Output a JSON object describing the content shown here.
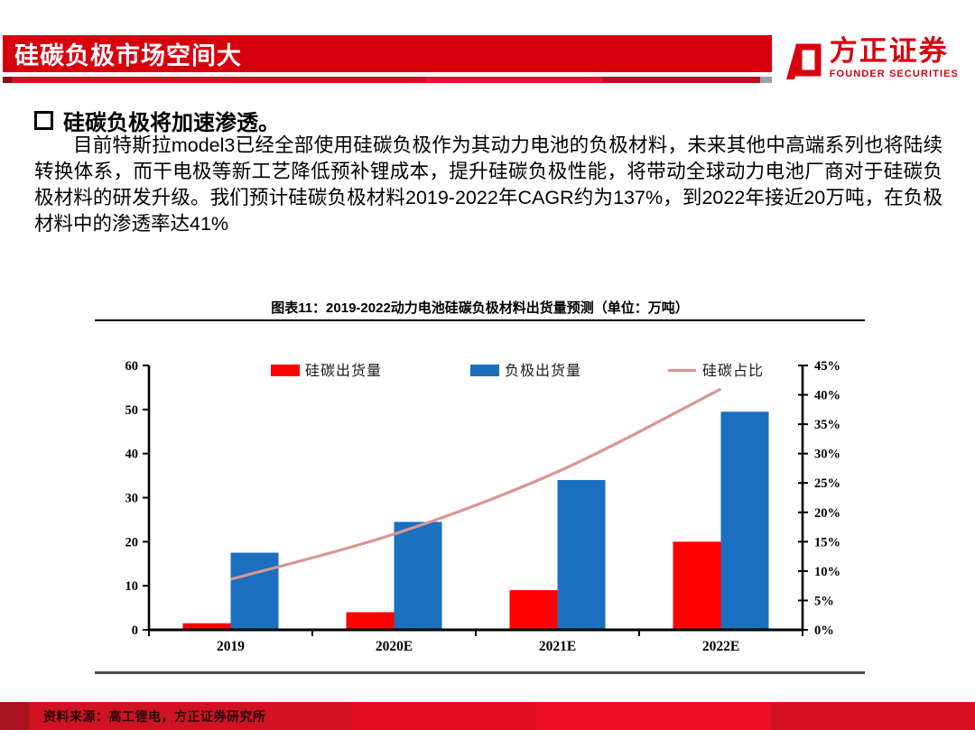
{
  "header": {
    "title": "硅碳负极市场空间大",
    "logo_cn": "方正证券",
    "logo_en": "FOUNDER SECURITIES",
    "bar_color": "#D7000F"
  },
  "content": {
    "heading": "硅碳负极将加速渗透。",
    "paragraph": "目前特斯拉model3已经全部使用硅碳负极作为其动力电池的负极材料，未来其他中高端系列也将陆续转换体系，而干电极等新工艺降低预补锂成本，提升硅碳负极性能，将带动全球动力电池厂商对于硅碳负极材料的研发升级。我们预计硅碳负极材料2019-2022年CAGR约为137%，到2022年接近20万吨，在负极材料中的渗透率达41%"
  },
  "figure": {
    "title": "图表11：2019-2022动力电池硅碳负极材料出货量预测（单位：万吨）"
  },
  "chart_data": {
    "type": "bar",
    "title": "2019-2022动力电池硅碳负极材料出货量预测",
    "unit": "万吨",
    "categories": [
      "2019",
      "2020E",
      "2021E",
      "2022E"
    ],
    "series": [
      {
        "name": "硅碳出货量",
        "type": "bar",
        "axis": "left",
        "color": "#FE0000",
        "values": [
          1.5,
          4,
          9,
          20
        ]
      },
      {
        "name": "负极出货量",
        "type": "bar",
        "axis": "left",
        "color": "#1B6FBF",
        "values": [
          17.5,
          24.5,
          34,
          49.5
        ]
      },
      {
        "name": "硅碳占比",
        "type": "line",
        "axis": "right",
        "color": "#D99694",
        "values": [
          8.6,
          16.3,
          26.9,
          41
        ]
      }
    ],
    "left_axis": {
      "min": 0,
      "max": 60,
      "step": 10,
      "suffix": ""
    },
    "right_axis": {
      "min": 0,
      "max": 45,
      "step": 5,
      "suffix": "%"
    },
    "legend_position": "top",
    "grid": false,
    "axis_color": "#000000"
  },
  "footer": {
    "source": "资料来源：高工锂电，方正证券研究所"
  }
}
